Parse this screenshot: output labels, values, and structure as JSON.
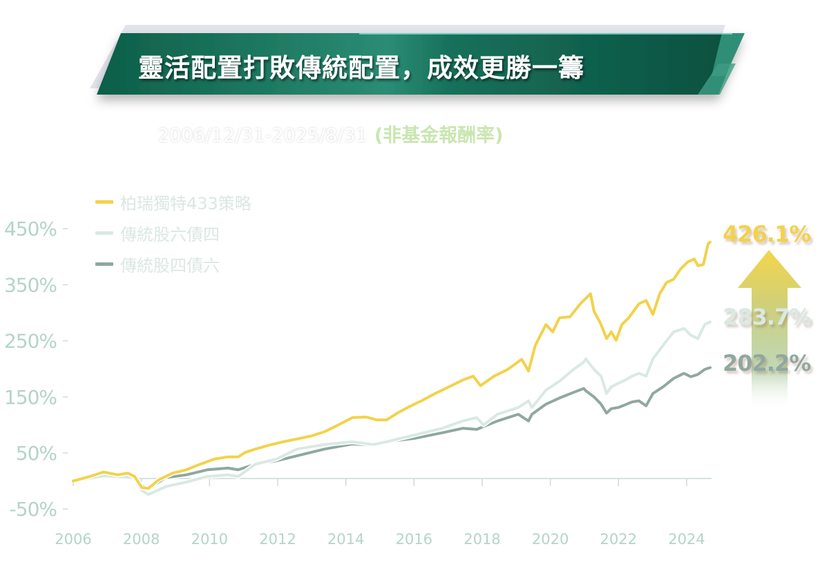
{
  "header": {
    "title": "靈活配置打敗傳統配置，成效更勝一籌",
    "subtitle_dates": "2006/12/31-2025/8/31",
    "subtitle_note": "(非基金報酬率)"
  },
  "colors": {
    "banner_green": "#0f6e55",
    "strategy": "#f2d24b",
    "traditional_60_40": "#d9e9e3",
    "traditional_40_60": "#8fa8a0",
    "axis_text": "#b5d3c9"
  },
  "end_labels": [
    {
      "text": "426.1%",
      "series": 0
    },
    {
      "text": "283.7%",
      "series": 1
    },
    {
      "text": "202.2%",
      "series": 2
    }
  ],
  "arrow_icon": "up-arrow-gradient",
  "chart_data": {
    "type": "line",
    "xlim": [
      2006,
      2024.7
    ],
    "ylim": [
      -60,
      470
    ],
    "x_ticks": [
      2006,
      2008,
      2010,
      2012,
      2014,
      2016,
      2018,
      2020,
      2022,
      2024
    ],
    "x_tick_labels": [
      "2006",
      "2008",
      "2010",
      "2012",
      "2014",
      "2016",
      "2018",
      "2020",
      "2022",
      "2024"
    ],
    "y_ticks": [
      -50,
      50,
      150,
      250,
      350,
      450
    ],
    "y_tick_labels": [
      "-50%",
      "50%",
      "150%",
      "250%",
      "350%",
      "450%"
    ],
    "grid": false,
    "legend_placement": "top-left",
    "series": [
      {
        "name": "柏瑞獨特433策略",
        "color": "#f2d24b",
        "points": [
          [
            2006,
            0
          ],
          [
            2006.49,
            8
          ],
          [
            2006.89,
            16
          ],
          [
            2007.3,
            11
          ],
          [
            2007.6,
            14
          ],
          [
            2007.8,
            8
          ],
          [
            2008.01,
            -12
          ],
          [
            2008.21,
            -13
          ],
          [
            2008.51,
            2
          ],
          [
            2008.92,
            14
          ],
          [
            2009.32,
            20
          ],
          [
            2009.73,
            30
          ],
          [
            2010.14,
            39
          ],
          [
            2010.54,
            43
          ],
          [
            2010.84,
            43
          ],
          [
            2011.05,
            51
          ],
          [
            2011.35,
            57
          ],
          [
            2011.76,
            64
          ],
          [
            2012.16,
            70
          ],
          [
            2012.57,
            75
          ],
          [
            2012.97,
            80
          ],
          [
            2013.38,
            88
          ],
          [
            2013.78,
            100
          ],
          [
            2014.19,
            113
          ],
          [
            2014.6,
            114
          ],
          [
            2014.9,
            109
          ],
          [
            2015.2,
            109
          ],
          [
            2015.51,
            121
          ],
          [
            2015.81,
            131
          ],
          [
            2016.22,
            143
          ],
          [
            2016.62,
            156
          ],
          [
            2017.03,
            168
          ],
          [
            2017.43,
            180
          ],
          [
            2017.74,
            187
          ],
          [
            2017.95,
            170
          ],
          [
            2018.35,
            187
          ],
          [
            2018.75,
            199
          ],
          [
            2019.16,
            217
          ],
          [
            2019.36,
            196
          ],
          [
            2019.56,
            242
          ],
          [
            2019.87,
            279
          ],
          [
            2020.07,
            266
          ],
          [
            2020.27,
            291
          ],
          [
            2020.58,
            293
          ],
          [
            2020.88,
            316
          ],
          [
            2021.18,
            334
          ],
          [
            2021.28,
            303
          ],
          [
            2021.49,
            279
          ],
          [
            2021.65,
            254
          ],
          [
            2021.79,
            266
          ],
          [
            2021.93,
            251
          ],
          [
            2022.1,
            279
          ],
          [
            2022.3,
            291
          ],
          [
            2022.6,
            316
          ],
          [
            2022.81,
            322
          ],
          [
            2023.01,
            297
          ],
          [
            2023.21,
            334
          ],
          [
            2023.41,
            354
          ],
          [
            2023.62,
            360
          ],
          [
            2023.82,
            378
          ],
          [
            2024.02,
            390
          ],
          [
            2024.22,
            396
          ],
          [
            2024.33,
            384
          ],
          [
            2024.49,
            386
          ],
          [
            2024.63,
            423
          ],
          [
            2024.69,
            426.1
          ]
        ]
      },
      {
        "name": "傳統股六債四",
        "color": "#d9e9e3",
        "points": [
          [
            2006,
            0
          ],
          [
            2006.89,
            9
          ],
          [
            2007.8,
            6
          ],
          [
            2008.01,
            -17
          ],
          [
            2008.21,
            -24
          ],
          [
            2008.72,
            -10
          ],
          [
            2009.32,
            -2
          ],
          [
            2009.93,
            8
          ],
          [
            2010.54,
            11
          ],
          [
            2010.84,
            8
          ],
          [
            2011.35,
            30
          ],
          [
            2011.96,
            39
          ],
          [
            2012.57,
            57
          ],
          [
            2013.38,
            65
          ],
          [
            2014.19,
            70
          ],
          [
            2014.8,
            65
          ],
          [
            2015.2,
            70
          ],
          [
            2016.01,
            82
          ],
          [
            2016.83,
            94
          ],
          [
            2017.43,
            107
          ],
          [
            2017.84,
            113
          ],
          [
            2018.04,
            100
          ],
          [
            2018.45,
            119
          ],
          [
            2019.06,
            131
          ],
          [
            2019.36,
            143
          ],
          [
            2019.46,
            131
          ],
          [
            2019.87,
            162
          ],
          [
            2020.27,
            178
          ],
          [
            2020.68,
            199
          ],
          [
            2020.98,
            212
          ],
          [
            2021.04,
            218
          ],
          [
            2021.28,
            199
          ],
          [
            2021.49,
            187
          ],
          [
            2021.65,
            156
          ],
          [
            2021.79,
            168
          ],
          [
            2021.99,
            174
          ],
          [
            2022.2,
            180
          ],
          [
            2022.4,
            187
          ],
          [
            2022.6,
            192
          ],
          [
            2022.81,
            187
          ],
          [
            2023.01,
            218
          ],
          [
            2023.31,
            242
          ],
          [
            2023.62,
            266
          ],
          [
            2023.92,
            272
          ],
          [
            2024.12,
            260
          ],
          [
            2024.33,
            254
          ],
          [
            2024.53,
            279
          ],
          [
            2024.69,
            283.7
          ]
        ]
      },
      {
        "name": "傳統股四債六",
        "color": "#8fa8a0",
        "points": [
          [
            2006,
            0
          ],
          [
            2006.89,
            8
          ],
          [
            2007.8,
            6
          ],
          [
            2008.01,
            -9
          ],
          [
            2008.21,
            -13
          ],
          [
            2008.72,
            6
          ],
          [
            2009.32,
            11
          ],
          [
            2009.93,
            20
          ],
          [
            2010.54,
            23
          ],
          [
            2010.84,
            20
          ],
          [
            2011.35,
            30
          ],
          [
            2011.96,
            36
          ],
          [
            2012.57,
            45
          ],
          [
            2013.38,
            57
          ],
          [
            2014.19,
            66
          ],
          [
            2014.8,
            64
          ],
          [
            2015.2,
            70
          ],
          [
            2016.01,
            76
          ],
          [
            2016.83,
            86
          ],
          [
            2017.43,
            94
          ],
          [
            2017.84,
            92
          ],
          [
            2018.04,
            97
          ],
          [
            2018.45,
            107
          ],
          [
            2019.06,
            119
          ],
          [
            2019.36,
            107
          ],
          [
            2019.46,
            119
          ],
          [
            2019.87,
            137
          ],
          [
            2020.27,
            148
          ],
          [
            2020.68,
            158
          ],
          [
            2020.98,
            165
          ],
          [
            2021.04,
            161
          ],
          [
            2021.28,
            150
          ],
          [
            2021.49,
            137
          ],
          [
            2021.65,
            121
          ],
          [
            2021.79,
            129
          ],
          [
            2021.99,
            131
          ],
          [
            2022.2,
            136
          ],
          [
            2022.4,
            141
          ],
          [
            2022.6,
            143
          ],
          [
            2022.81,
            134
          ],
          [
            2023.01,
            156
          ],
          [
            2023.31,
            168
          ],
          [
            2023.62,
            183
          ],
          [
            2023.92,
            192
          ],
          [
            2024.12,
            186
          ],
          [
            2024.33,
            190
          ],
          [
            2024.53,
            199
          ],
          [
            2024.69,
            202.2
          ]
        ]
      }
    ]
  }
}
